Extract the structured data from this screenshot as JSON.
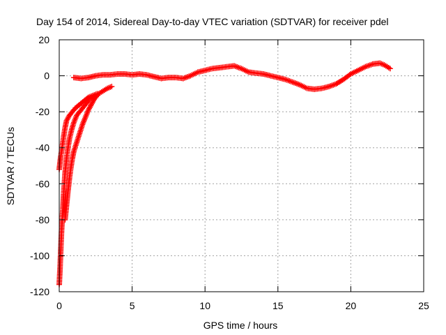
{
  "chart_data": {
    "type": "scatter",
    "title": "Day 154 of 2014, Sidereal Day-to-day VTEC variation (SDTVAR) for receiver pdel",
    "xlabel": "GPS time / hours",
    "ylabel": "SDTVAR / TECUs",
    "xlim": [
      0,
      25
    ],
    "ylim": [
      -120,
      20
    ],
    "xticks": [
      "0",
      "5",
      "10",
      "15",
      "20",
      "25"
    ],
    "yticks": [
      "-120",
      "-100",
      "-80",
      "-60",
      "-40",
      "-20",
      "0",
      "20"
    ],
    "grid": true,
    "marker": "plus",
    "color": "#ff0000",
    "series": [
      {
        "points": [
          [
            0.0,
            -116
          ],
          [
            0.05,
            -108
          ],
          [
            0.1,
            -98
          ],
          [
            0.15,
            -88
          ],
          [
            0.2,
            -80
          ],
          [
            0.25,
            -74
          ],
          [
            0.3,
            -66
          ],
          [
            0.35,
            -60
          ],
          [
            0.4,
            -54
          ],
          [
            0.5,
            -46
          ],
          [
            0.6,
            -40
          ],
          [
            0.7,
            -35
          ],
          [
            0.85,
            -30
          ],
          [
            1.0,
            -26
          ],
          [
            1.2,
            -22
          ],
          [
            1.5,
            -19
          ],
          [
            1.8,
            -16
          ],
          [
            2.1,
            -13
          ],
          [
            2.5,
            -11
          ],
          [
            2.9,
            -9
          ],
          [
            3.3,
            -7
          ],
          [
            3.6,
            -6
          ]
        ]
      },
      {
        "points": [
          [
            0.0,
            -52
          ],
          [
            0.1,
            -45
          ],
          [
            0.2,
            -40
          ],
          [
            0.3,
            -34
          ],
          [
            0.4,
            -29
          ],
          [
            0.5,
            -25
          ],
          [
            0.7,
            -22
          ],
          [
            0.9,
            -20
          ],
          [
            1.1,
            -18
          ],
          [
            1.4,
            -16
          ],
          [
            1.7,
            -14
          ],
          [
            2.0,
            -12
          ],
          [
            2.3,
            -11
          ],
          [
            2.6,
            -10
          ]
        ]
      },
      {
        "points": [
          [
            0.4,
            -80
          ],
          [
            0.5,
            -72
          ],
          [
            0.6,
            -64
          ],
          [
            0.7,
            -57
          ],
          [
            0.8,
            -51
          ],
          [
            0.9,
            -46
          ],
          [
            1.0,
            -42
          ],
          [
            1.2,
            -37
          ],
          [
            1.4,
            -32
          ],
          [
            1.6,
            -27
          ],
          [
            1.8,
            -23
          ],
          [
            2.0,
            -19
          ],
          [
            2.2,
            -16
          ],
          [
            2.4,
            -13
          ],
          [
            2.6,
            -11
          ]
        ]
      },
      {
        "points": [
          [
            1.0,
            -1
          ],
          [
            1.5,
            -1.5
          ],
          [
            2.0,
            -1
          ],
          [
            2.5,
            0
          ],
          [
            3.0,
            0.5
          ],
          [
            3.5,
            0.5
          ],
          [
            4.0,
            1
          ],
          [
            4.5,
            1
          ],
          [
            5.0,
            0.5
          ],
          [
            5.5,
            1
          ],
          [
            6.0,
            0.5
          ],
          [
            6.5,
            -0.5
          ],
          [
            7.0,
            -1.5
          ],
          [
            7.5,
            -1
          ],
          [
            8.0,
            -1
          ],
          [
            8.5,
            -1.5
          ],
          [
            9.0,
            0
          ],
          [
            9.5,
            2
          ],
          [
            10.0,
            3
          ],
          [
            10.5,
            4
          ],
          [
            11.0,
            4.5
          ],
          [
            11.5,
            5
          ],
          [
            12.0,
            5.5
          ],
          [
            12.5,
            4
          ],
          [
            13.0,
            2
          ],
          [
            13.5,
            1.5
          ],
          [
            14.0,
            1
          ],
          [
            14.5,
            0
          ],
          [
            15.0,
            -1
          ],
          [
            15.5,
            -2
          ],
          [
            16.0,
            -3.5
          ],
          [
            16.5,
            -5
          ],
          [
            17.0,
            -7
          ],
          [
            17.5,
            -7.5
          ],
          [
            18.0,
            -7
          ],
          [
            18.5,
            -6
          ],
          [
            19.0,
            -4.5
          ],
          [
            19.5,
            -2
          ],
          [
            20.0,
            1
          ],
          [
            20.5,
            3
          ],
          [
            21.0,
            5
          ],
          [
            21.5,
            6.5
          ],
          [
            22.0,
            7
          ],
          [
            22.3,
            6
          ],
          [
            22.7,
            4
          ]
        ]
      }
    ]
  }
}
